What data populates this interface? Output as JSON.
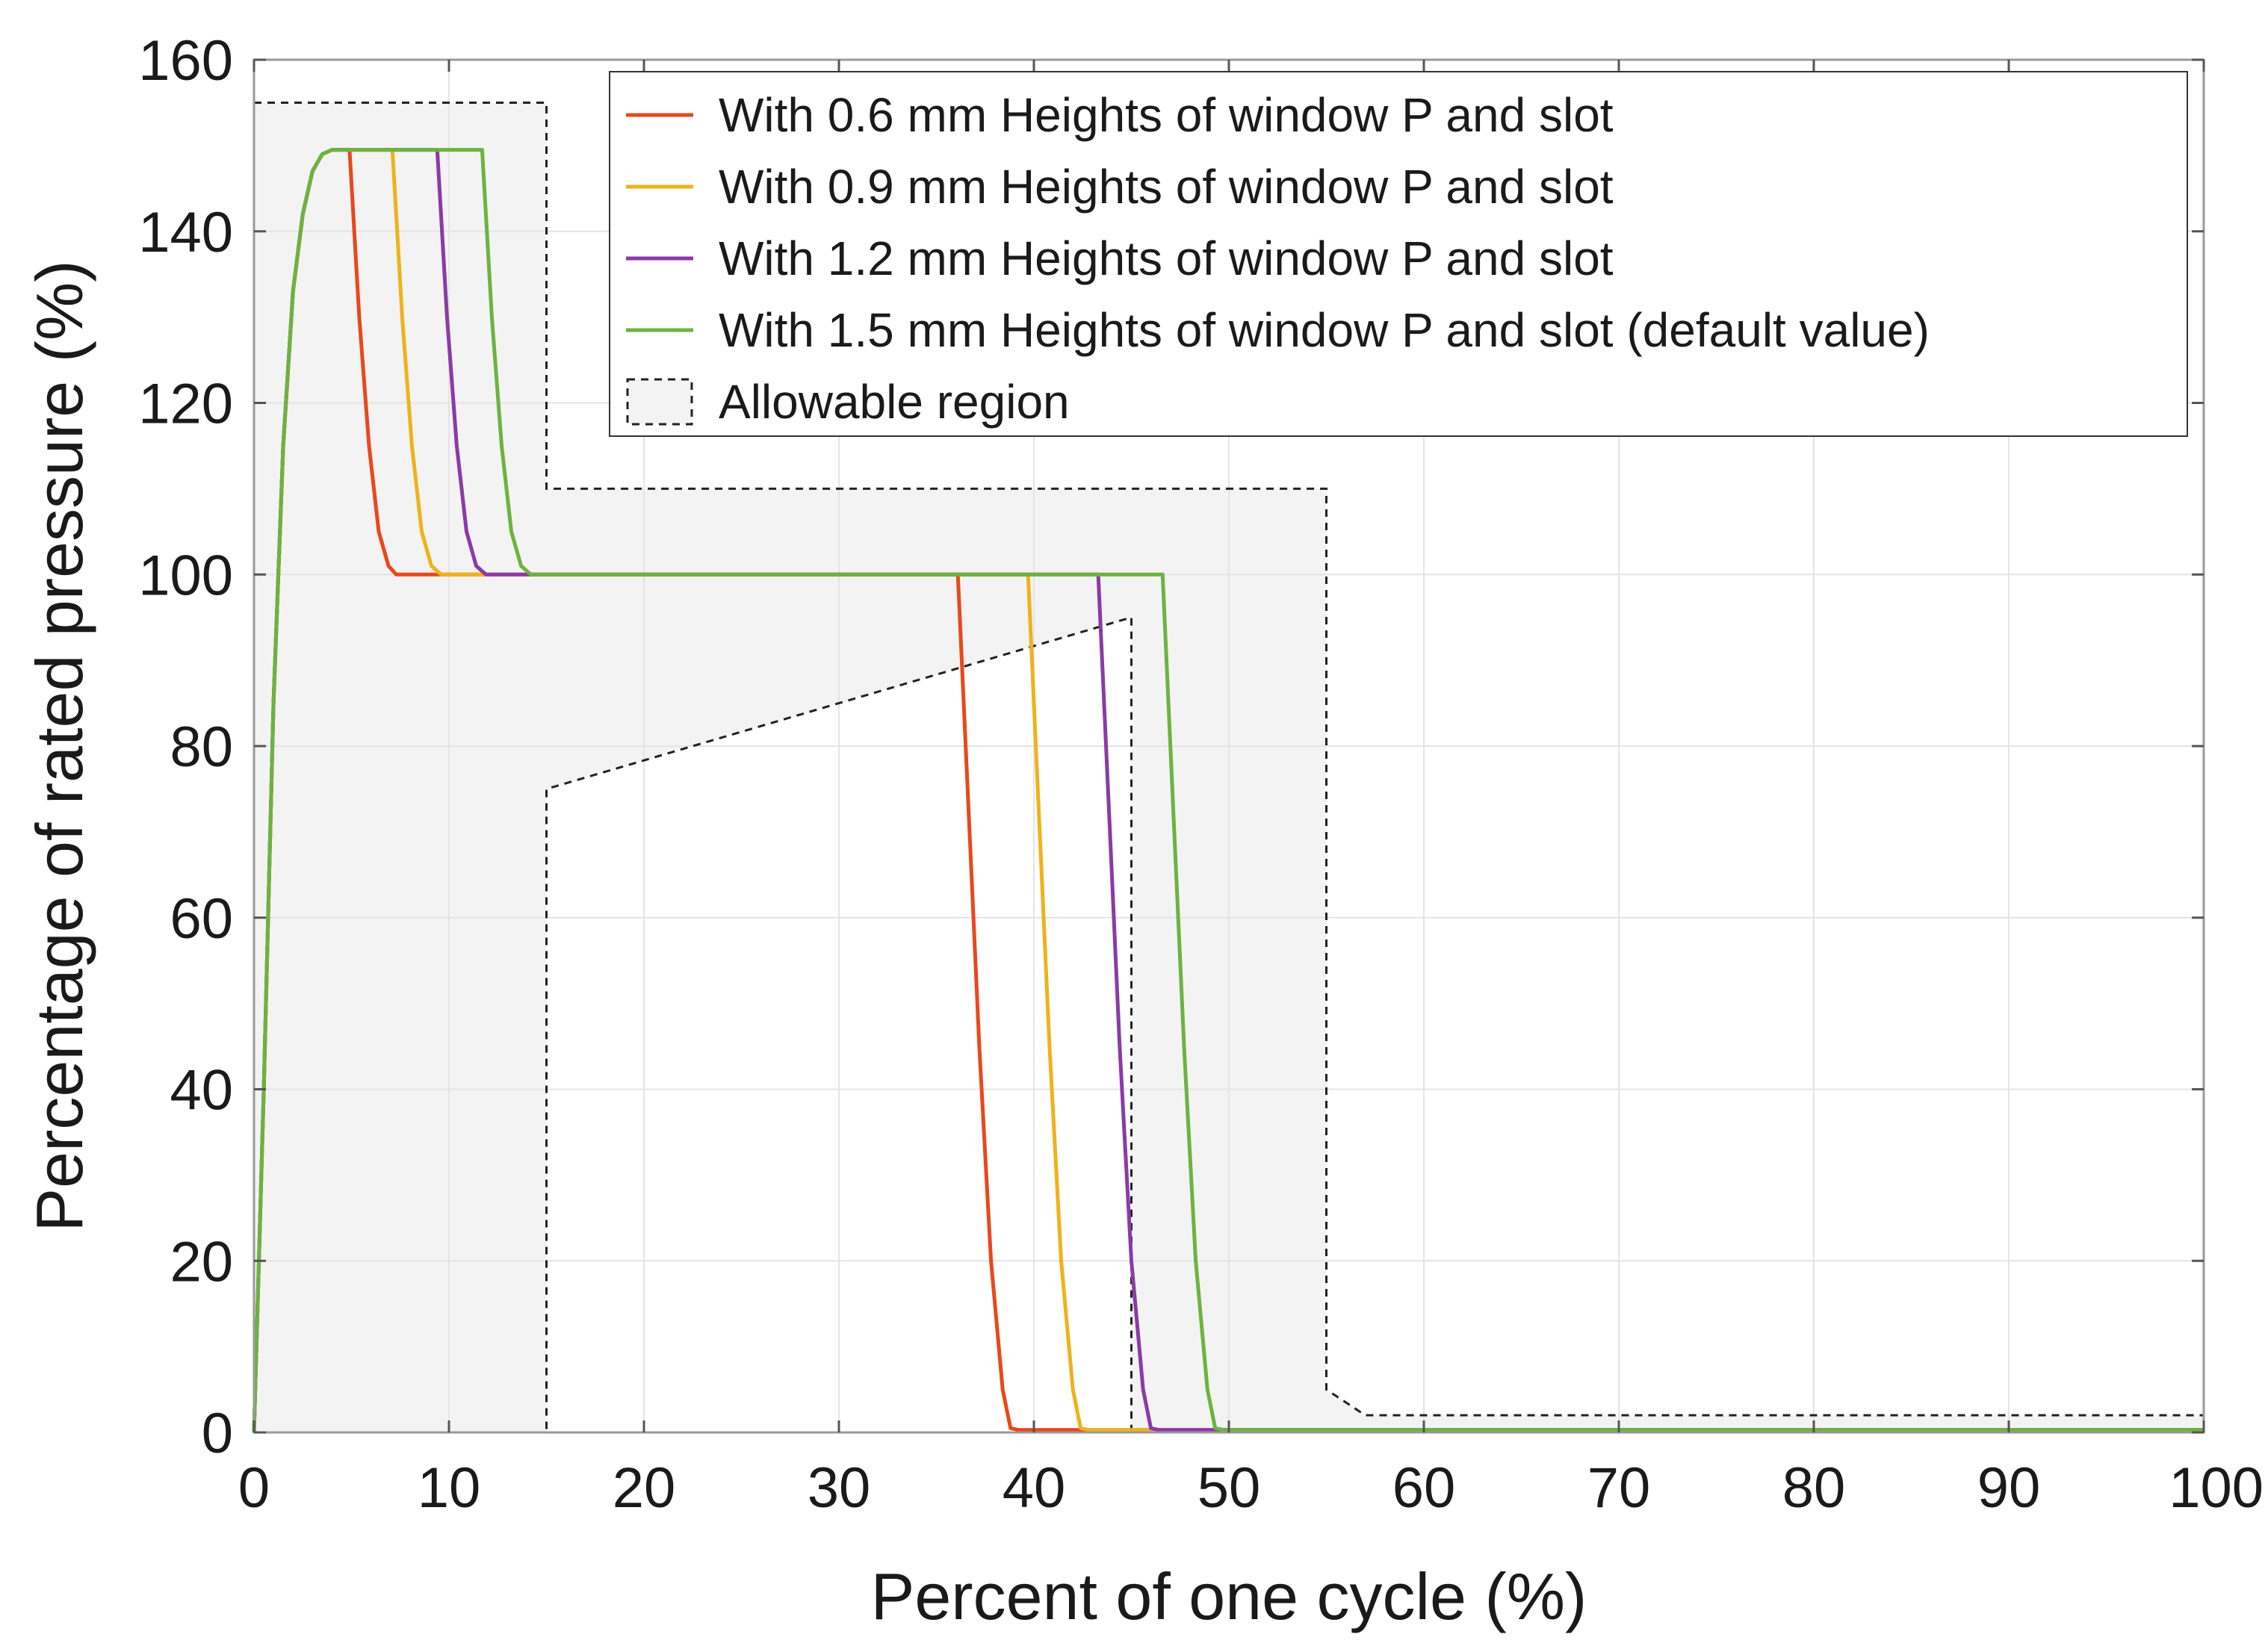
{
  "chart_data": {
    "type": "line",
    "title": "",
    "xlabel": "Percent of one cycle (%)",
    "ylabel": "Percentage of rated pressure (%)",
    "xlim": [
      0,
      100
    ],
    "ylim": [
      0,
      160
    ],
    "xticks": [
      0,
      10,
      20,
      30,
      40,
      50,
      60,
      70,
      80,
      90,
      100
    ],
    "yticks": [
      0,
      20,
      40,
      60,
      80,
      100,
      120,
      140,
      160
    ],
    "xtick_labels": [
      "0",
      "10",
      "20",
      "30",
      "40",
      "50",
      "60",
      "70",
      "80",
      "90",
      "100"
    ],
    "ytick_labels": [
      "0",
      "20",
      "40",
      "60",
      "80",
      "100",
      "120",
      "140",
      "160"
    ],
    "grid": true,
    "legend_position": "top-right",
    "series": [
      {
        "name": "With 0.6 mm Heights of window P and slot",
        "color": "#e8481c",
        "x": [
          0,
          0.5,
          1.0,
          1.5,
          2.0,
          2.5,
          3.0,
          3.5,
          4.0,
          4.5,
          4.9,
          5.4,
          5.9,
          6.4,
          6.9,
          7.3,
          12,
          36.1,
          36.6,
          37.2,
          37.8,
          38.4,
          38.8,
          39.2,
          100
        ],
        "y": [
          0,
          40,
          85,
          115,
          133,
          142,
          147,
          149,
          149.5,
          149.5,
          149.5,
          130,
          115,
          105,
          101,
          100,
          100,
          100,
          75,
          45,
          20,
          5,
          0.5,
          0.3,
          0.3
        ]
      },
      {
        "name": "With 0.9 mm Heights of window P and slot",
        "color": "#efb21b",
        "x": [
          0,
          0.5,
          1.0,
          1.5,
          2.0,
          2.5,
          3.0,
          3.5,
          4.0,
          4.5,
          7.1,
          7.6,
          8.1,
          8.6,
          9.1,
          9.6,
          12,
          39.7,
          40.2,
          40.8,
          41.4,
          42.0,
          42.4,
          42.8,
          100
        ],
        "y": [
          0,
          40,
          85,
          115,
          133,
          142,
          147,
          149,
          149.5,
          149.5,
          149.5,
          130,
          115,
          105,
          101,
          100,
          100,
          100,
          75,
          45,
          20,
          5,
          0.5,
          0.3,
          0.3
        ]
      },
      {
        "name": "With 1.2 mm Heights of window P and slot",
        "color": "#8b3aa6",
        "x": [
          0,
          0.5,
          1.0,
          1.5,
          2.0,
          2.5,
          3.0,
          3.5,
          4.0,
          4.5,
          9.4,
          9.9,
          10.4,
          10.9,
          11.4,
          11.9,
          14,
          43.3,
          43.8,
          44.4,
          45.0,
          45.6,
          46.0,
          46.4,
          100
        ],
        "y": [
          0,
          40,
          85,
          115,
          133,
          142,
          147,
          149,
          149.5,
          149.5,
          149.5,
          130,
          115,
          105,
          101,
          100,
          100,
          100,
          75,
          45,
          20,
          5,
          0.5,
          0.3,
          0.3
        ]
      },
      {
        "name": "With 1.5 mm Heights of window P and slot (default value)",
        "color": "#6db33f",
        "x": [
          0,
          0.5,
          1.0,
          1.5,
          2.0,
          2.5,
          3.0,
          3.5,
          4.0,
          4.5,
          11.7,
          12.2,
          12.7,
          13.2,
          13.7,
          14.2,
          20,
          46.6,
          47.1,
          47.7,
          48.3,
          48.9,
          49.3,
          49.7,
          100
        ],
        "y": [
          0,
          40,
          85,
          115,
          133,
          142,
          147,
          149,
          149.5,
          149.5,
          149.5,
          130,
          115,
          105,
          101,
          100,
          100,
          100,
          75,
          45,
          20,
          5,
          0.5,
          0.3,
          0.3
        ]
      }
    ],
    "allowable_region": {
      "name": "Allowable region",
      "upper_bound": {
        "x": [
          0,
          15,
          15,
          55,
          55,
          57,
          100
        ],
        "y": [
          155,
          155,
          110,
          110,
          5,
          2,
          2
        ]
      },
      "lower_bound": {
        "x": [
          0,
          15,
          15,
          45,
          45,
          100
        ],
        "y": [
          0,
          0,
          75,
          95,
          0,
          0
        ]
      }
    }
  }
}
